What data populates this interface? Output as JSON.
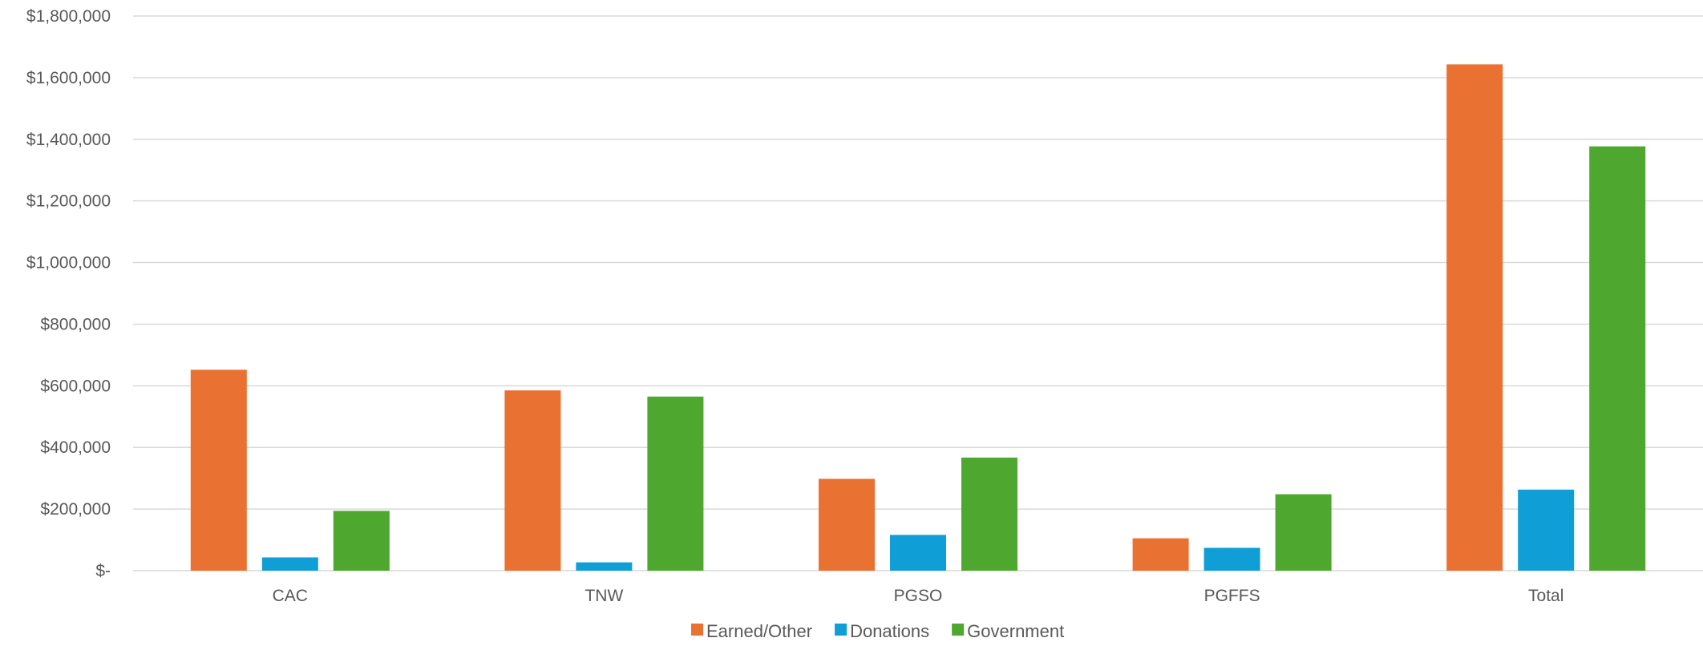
{
  "chart_data": {
    "type": "bar",
    "categories": [
      "CAC",
      "TNW",
      "PGSO",
      "PGFFS",
      "Total"
    ],
    "series": [
      {
        "name": "Earned/Other",
        "color": "#E97132",
        "values": [
          652000,
          585000,
          298000,
          105000,
          1643000
        ]
      },
      {
        "name": "Donations",
        "color": "#0F9ED5",
        "values": [
          43000,
          27000,
          116000,
          74000,
          263000
        ]
      },
      {
        "name": "Government",
        "color": "#4EA72E",
        "values": [
          194000,
          565000,
          367000,
          248000,
          1377000
        ]
      }
    ],
    "ylim": [
      0,
      1800000
    ],
    "yticks": [
      {
        "value": 0,
        "label": "$-"
      },
      {
        "value": 200000,
        "label": "$200,000"
      },
      {
        "value": 400000,
        "label": "$400,000"
      },
      {
        "value": 600000,
        "label": "$600,000"
      },
      {
        "value": 800000,
        "label": "$800,000"
      },
      {
        "value": 1000000,
        "label": "$1,000,000"
      },
      {
        "value": 1200000,
        "label": "$1,200,000"
      },
      {
        "value": 1400000,
        "label": "$1,400,000"
      },
      {
        "value": 1600000,
        "label": "$1,600,000"
      },
      {
        "value": 1800000,
        "label": "$1,800,000"
      }
    ],
    "grid": true,
    "legend": "bottom",
    "gridline_color": "#D9D9D9",
    "text_color": "#595959"
  }
}
